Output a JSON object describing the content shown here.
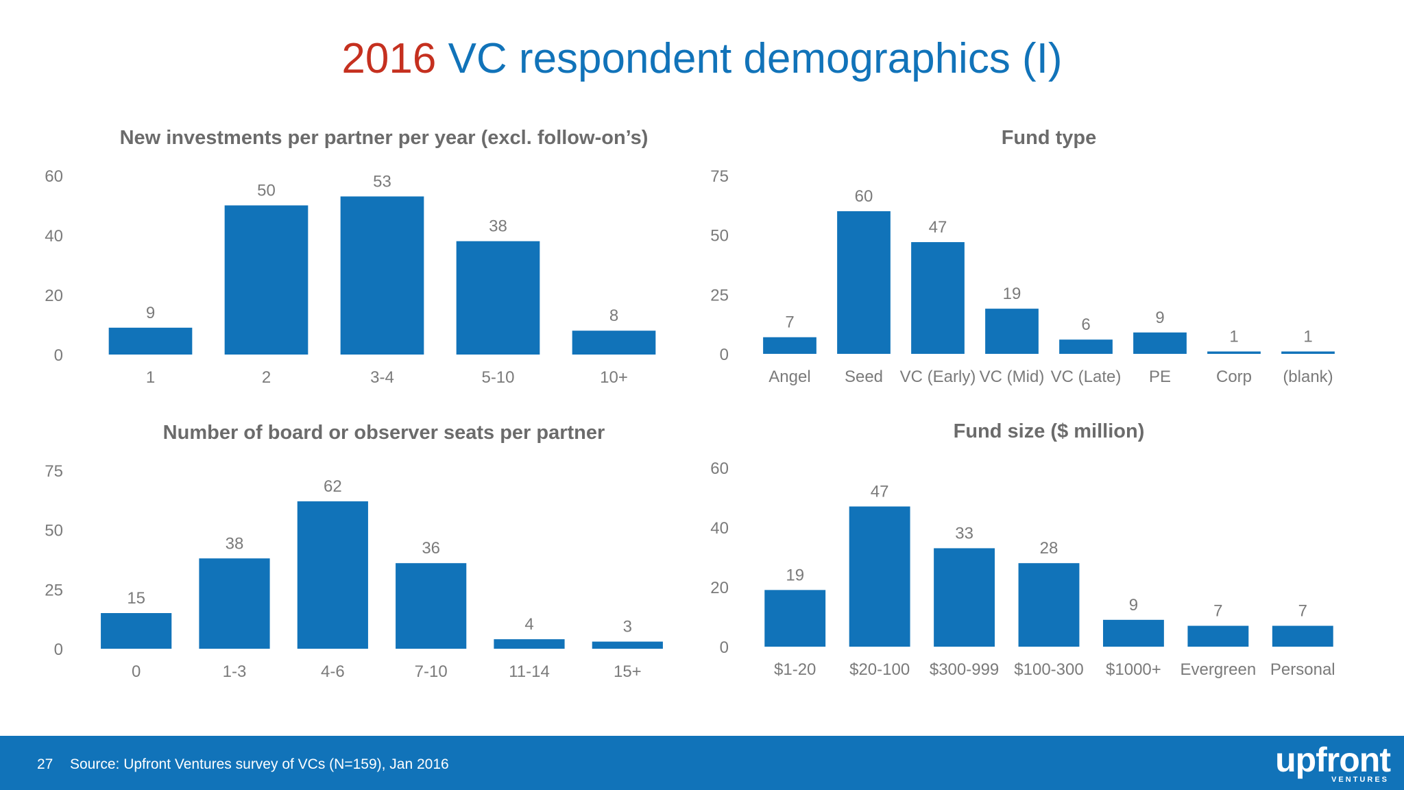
{
  "slide": {
    "title_year": "2016",
    "title_rest": " VC respondent demographics (I)",
    "colors": {
      "bar": "#1173b9",
      "title_accent": "#c5301f",
      "footer_bg": "#1173b9"
    }
  },
  "footer": {
    "page_number": "27",
    "source": "Source: Upfront Ventures survey of VCs (N=159), Jan 2016",
    "logo_text": "upfront",
    "logo_subtext": "VENTURES"
  },
  "chart_data": [
    {
      "type": "bar",
      "title": "New investments per partner per year (excl. follow-on’s)",
      "categories": [
        "1",
        "2",
        "3-4",
        "5-10",
        "10+"
      ],
      "values": [
        9,
        50,
        53,
        38,
        8
      ],
      "yticks": [
        0,
        20,
        40,
        60
      ],
      "ylim": [
        0,
        60
      ],
      "xlabel": "",
      "ylabel": "",
      "grid": false
    },
    {
      "type": "bar",
      "title": "Fund type",
      "categories": [
        "Angel",
        "Seed",
        "VC (Early)",
        "VC (Mid)",
        "VC (Late)",
        "PE",
        "Corp",
        "(blank)"
      ],
      "values": [
        7,
        60,
        47,
        19,
        6,
        9,
        1,
        1
      ],
      "yticks": [
        0,
        25,
        50,
        75
      ],
      "ylim": [
        0,
        75
      ],
      "xlabel": "",
      "ylabel": "",
      "grid": false
    },
    {
      "type": "bar",
      "title": "Number of board or observer seats per partner",
      "categories": [
        "0",
        "1-3",
        "4-6",
        "7-10",
        "11-14",
        "15+"
      ],
      "values": [
        15,
        38,
        62,
        36,
        4,
        3
      ],
      "yticks": [
        0,
        25,
        50,
        75
      ],
      "ylim": [
        0,
        75
      ],
      "xlabel": "",
      "ylabel": "",
      "grid": false
    },
    {
      "type": "bar",
      "title": "Fund size ($ million)",
      "categories": [
        "$1-20",
        "$20-100",
        "$300-999",
        "$100-300",
        "$1000+",
        "Evergreen",
        "Personal"
      ],
      "values": [
        19,
        47,
        33,
        28,
        9,
        7,
        7
      ],
      "yticks": [
        0,
        20,
        40,
        60
      ],
      "ylim": [
        0,
        60
      ],
      "xlabel": "",
      "ylabel": "",
      "grid": false
    }
  ]
}
